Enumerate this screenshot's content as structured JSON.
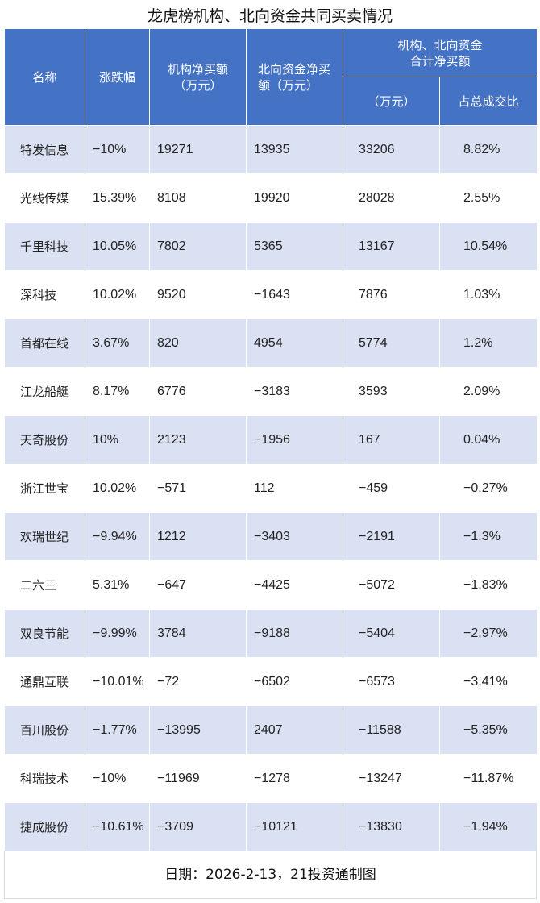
{
  "title": "龙虎榜机构、北向资金共同买卖情况",
  "header": {
    "name": "名称",
    "change": "涨跌幅",
    "inst_line1": "机构净买额",
    "inst_line2": "（万元）",
    "north_line1": "北向资金净买",
    "north_line2": "额（万元）",
    "combined_line1": "机构、北向资金",
    "combined_line2": "合计净买额",
    "combined_unit": "（万元）",
    "share": "占总成交比"
  },
  "rows": [
    {
      "name": "特发信息",
      "change": "-10%",
      "inst": "19271",
      "north": "13935",
      "total": "33206",
      "share": "8.82%"
    },
    {
      "name": "光线传媒",
      "change": "15.39%",
      "inst": "8108",
      "north": "19920",
      "total": "28028",
      "share": "2.55%"
    },
    {
      "name": "千里科技",
      "change": "10.05%",
      "inst": "7802",
      "north": "5365",
      "total": "13167",
      "share": "10.54%"
    },
    {
      "name": "深科技",
      "change": "10.02%",
      "inst": "9520",
      "north": "-1643",
      "total": "7876",
      "share": "1.03%"
    },
    {
      "name": "首都在线",
      "change": "3.67%",
      "inst": "820",
      "north": "4954",
      "total": "5774",
      "share": "1.2%"
    },
    {
      "name": "江龙船艇",
      "change": "8.17%",
      "inst": "6776",
      "north": "-3183",
      "total": "3593",
      "share": "2.09%"
    },
    {
      "name": "天奇股份",
      "change": "10%",
      "inst": "2123",
      "north": "-1956",
      "total": "167",
      "share": "0.04%"
    },
    {
      "name": "浙江世宝",
      "change": "10.02%",
      "inst": "-571",
      "north": "112",
      "total": "-459",
      "share": "-0.27%"
    },
    {
      "name": "欢瑞世纪",
      "change": "-9.94%",
      "inst": "1212",
      "north": "-3403",
      "total": "-2191",
      "share": "-1.3%"
    },
    {
      "name": "二六三",
      "change": "5.31%",
      "inst": "-647",
      "north": "-4425",
      "total": "-5072",
      "share": "-1.83%"
    },
    {
      "name": "双良节能",
      "change": "-9.99%",
      "inst": "3784",
      "north": "-9188",
      "total": "-5404",
      "share": "-2.97%"
    },
    {
      "name": "通鼎互联",
      "change": "-10.01%",
      "inst": "-72",
      "north": "-6502",
      "total": "-6573",
      "share": "-3.41%"
    },
    {
      "name": "百川股份",
      "change": "-1.77%",
      "inst": "-13995",
      "north": "2407",
      "total": "-11588",
      "share": "-5.35%"
    },
    {
      "name": "科瑞技术",
      "change": "-10%",
      "inst": "-11969",
      "north": "-1278",
      "total": "-13247",
      "share": "-11.87%"
    },
    {
      "name": "捷成股份",
      "change": "-10.61%",
      "inst": "-3709",
      "north": "-10121",
      "total": "-13830",
      "share": "-1.94%"
    }
  ],
  "footer": "日期：2026-2-13，21投资通制图",
  "colors": {
    "header_bg": "#4472c4",
    "row_stripe": "#dae1f2",
    "row_plain": "#ffffff"
  }
}
